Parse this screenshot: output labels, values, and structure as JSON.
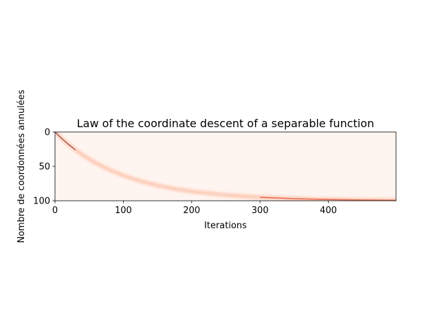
{
  "chart_data": {
    "type": "heatmap",
    "title": "Law of the coordinate descent of a separable function",
    "xlabel": "Iterations",
    "ylabel": "Nombre de coordonnées annulées",
    "xlim": [
      0,
      499
    ],
    "ylim": [
      0,
      100
    ],
    "y_axis_inverted": true,
    "xticks": [
      0,
      100,
      200,
      300,
      400
    ],
    "yticks": [
      0,
      50,
      100
    ],
    "colormap": "Reds",
    "colors": {
      "low": "#fff5f0",
      "mid": "#fcbba1",
      "high": "#67000d"
    },
    "series": [
      {
        "x": [
          0,
          10,
          20,
          30,
          40,
          50,
          60,
          80,
          100,
          125,
          150,
          175,
          200,
          250,
          300,
          350,
          400,
          450,
          499
        ],
        "values": [
          0,
          9.5,
          18.2,
          26.0,
          33.0,
          39.4,
          45.2,
          55.1,
          63.2,
          71.5,
          77.7,
          82.6,
          86.5,
          91.8,
          95.0,
          97.0,
          98.2,
          98.9,
          99.3
        ]
      }
    ],
    "grid": false
  }
}
